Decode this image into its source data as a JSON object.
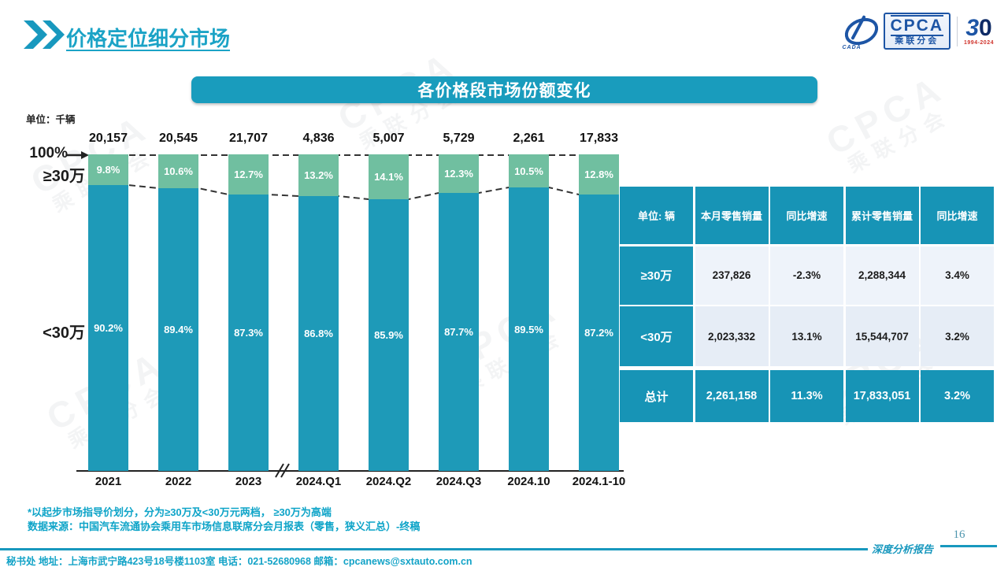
{
  "slide": {
    "title": "价格定位细分市场",
    "page_number": "16",
    "report_label": "深度分析报告",
    "contact_line": "秘书处  地址：上海市武宁路423号18号楼1103室  电话：021-52680968  邮箱：cpcanews@sxtauto.com.cn",
    "notes": {
      "line1": "*以起步市场指导价划分，分为≥30万及<30万元两档， ≥30万为高端",
      "line2": "数据来源：中国汽车流通协会乘用车市场信息联席分会月报表（零售，狭义汇总）-终稿"
    }
  },
  "logo": {
    "org_acronym": "CPCA",
    "org_name_cn": "乘联分会",
    "assoc_acronym": "CADA",
    "anniversary_digit_3": "3",
    "anniversary_digit_0": "0",
    "anniversary_years": "1994-2024",
    "watermark_text": "CPCA",
    "watermark_subtext": "乘联分会"
  },
  "chart_data": {
    "type": "bar",
    "stacked_percent": true,
    "title": "各价格段市场份额变化",
    "unit_label": "单位：千辆",
    "y_top_label": "100%",
    "categories": [
      "2021",
      "2022",
      "2023",
      "2024.Q1",
      "2024.Q2",
      "2024.Q3",
      "2024.10",
      "2024.1-10"
    ],
    "totals_thousands": [
      "20,157",
      "20,545",
      "21,707",
      "4,836",
      "5,007",
      "5,729",
      "2,261",
      "17,833"
    ],
    "series": [
      {
        "name": "≥30万",
        "color": "#70bfa0",
        "values": [
          9.8,
          10.6,
          12.7,
          13.2,
          14.1,
          12.3,
          10.5,
          12.8
        ]
      },
      {
        "name": "<30万",
        "color": "#1e9ab8",
        "values": [
          90.2,
          89.4,
          87.3,
          86.8,
          85.9,
          87.7,
          89.5,
          87.2
        ]
      }
    ],
    "axis_break_between": [
      "2023",
      "2024.Q1"
    ],
    "ylim": [
      0,
      100
    ],
    "legend_position": "left",
    "grid": false
  },
  "table": {
    "unit_header": "单位: 辆",
    "columns": [
      "本月零售销量",
      "同比增速",
      "累计零售销量",
      "同比增速"
    ],
    "rows": [
      {
        "label": "≥30万",
        "cells": [
          "237,826",
          "-2.3%",
          "2,288,344",
          "3.4%"
        ]
      },
      {
        "label": "<30万",
        "cells": [
          "2,023,332",
          "13.1%",
          "15,544,707",
          "3.2%"
        ]
      }
    ],
    "total": {
      "label": "总计",
      "cells": [
        "2,261,158",
        "11.3%",
        "17,833,051",
        "3.2%"
      ]
    },
    "colors": {
      "header_bg": "#1794b6",
      "row_light": "#eef3fa",
      "row_alt": "#e6edf6"
    }
  },
  "colors": {
    "teal_primary": "#1e9ab8",
    "green_segment": "#70bfa0",
    "title_text": "#1ba3c6",
    "note_text": "#0ea4c8",
    "logo_blue": "#1d55a5",
    "logo_red": "#d0342c"
  }
}
